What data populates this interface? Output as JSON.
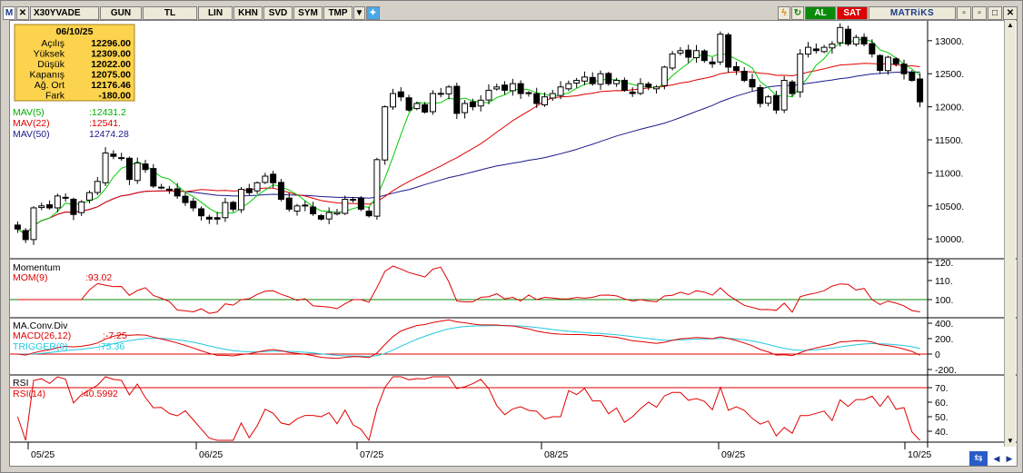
{
  "toolbar": {
    "m_label": "M",
    "symbol": "X30YVADE",
    "period": "GUN",
    "currency": "TL",
    "buttons": [
      "LIN",
      "KHN",
      "SVD",
      "SYM",
      "TMP"
    ],
    "buy_label": "AL",
    "sell_label": "SAT",
    "brand": "MATRiKS"
  },
  "info_box": {
    "date": "06/10/25",
    "rows": [
      {
        "label": "Açılış",
        "value": "12296.00"
      },
      {
        "label": "Yüksek",
        "value": "12309.00"
      },
      {
        "label": "Düşük",
        "value": "12022.00"
      },
      {
        "label": "Kapanış",
        "value": "12075.00"
      },
      {
        "label": "Ağ. Ort",
        "value": "12176.46"
      },
      {
        "label": "Fark",
        "value": "-180.00"
      }
    ]
  },
  "legend": {
    "mav5": {
      "name": "MAV(5)",
      "value": ":12431.2"
    },
    "mav22": {
      "name": "MAV(22)",
      "value": ":12541."
    },
    "mav50": {
      "name": "MAV(50)",
      "value": "12474.28"
    }
  },
  "panels": {
    "momentum": {
      "title": "Momentum",
      "series_name": "MOM(9)",
      "value": ":93.02"
    },
    "macd": {
      "title": "MA.Conv.Div",
      "series_name": "MACD(26,12)",
      "value": ":-7.25",
      "trigger_name": "TRIGGER(9)",
      "trigger_value": ":75.36"
    },
    "rsi": {
      "title": "RSI",
      "series_name": "RSI(14)",
      "value": ":40.5992"
    }
  },
  "colors": {
    "up": "#ffffff",
    "down": "#000000",
    "mav5": "#00cc00",
    "mav22": "#e00000",
    "mav50": "#1a1a8c",
    "trigger": "#22c8e0",
    "accent": "#e00000"
  },
  "chart_data": [
    {
      "type": "candlestick",
      "title": "X30YVADE",
      "y_ticks": [
        "13000.",
        "12500.",
        "12000.",
        "11500.",
        "11000.",
        "10500.",
        "10000."
      ],
      "ylim": [
        9700,
        13300
      ],
      "x_ticks": [
        "05/25",
        "06/25",
        "07/25",
        "08/25",
        "09/25",
        "10/25"
      ],
      "close": [
        10150,
        9990,
        10470,
        10500,
        10470,
        10650,
        10620,
        10370,
        10560,
        10700,
        10870,
        11300,
        11250,
        11230,
        10900,
        11150,
        11050,
        10800,
        10780,
        10750,
        10650,
        10550,
        10470,
        10350,
        10300,
        10300,
        10550,
        10450,
        10750,
        10700,
        10850,
        10950,
        10850,
        10600,
        10450,
        10500,
        10500,
        10380,
        10300,
        10400,
        10400,
        10600,
        10600,
        10450,
        10350,
        11200,
        12000,
        12200,
        12150,
        11950,
        12050,
        11920,
        12200,
        12200,
        12300,
        11900,
        12050,
        12000,
        12100,
        12250,
        12300,
        12250,
        12350,
        12200,
        12200,
        12050,
        12150,
        12200,
        12300,
        12350,
        12400,
        12450,
        12350,
        12500,
        12350,
        12400,
        12250,
        12200,
        12350,
        12300,
        12300,
        12600,
        12800,
        12850,
        12750,
        12850,
        12700,
        12650,
        13100,
        12600,
        12550,
        12400,
        12300,
        12050,
        12150,
        11950,
        12400,
        12200,
        12800,
        12900,
        12850,
        12900,
        12950,
        13200,
        12950,
        13050,
        12950,
        12800,
        12550,
        12750,
        12650,
        12500,
        12400,
        12075
      ],
      "mav5_last": 12431.2,
      "mav22_last": 12541,
      "mav50_last": 12474.28
    },
    {
      "type": "line",
      "title": "Momentum",
      "series": [
        {
          "name": "MOM(9)"
        }
      ],
      "y_ticks": [
        "120.",
        "110.",
        "100."
      ],
      "last": 93.02
    },
    {
      "type": "line",
      "title": "MA.Conv.Div",
      "series": [
        {
          "name": "MACD(26,12)",
          "last": -7.25
        },
        {
          "name": "TRIGGER(9)",
          "last": 75.36
        }
      ],
      "y_ticks": [
        "400.",
        "200.",
        "0",
        "-200."
      ]
    },
    {
      "type": "line",
      "title": "RSI",
      "series": [
        {
          "name": "RSI(14)",
          "last": 40.5992
        }
      ],
      "y_ticks": [
        "70.",
        "60.",
        "50.",
        "40."
      ]
    }
  ]
}
